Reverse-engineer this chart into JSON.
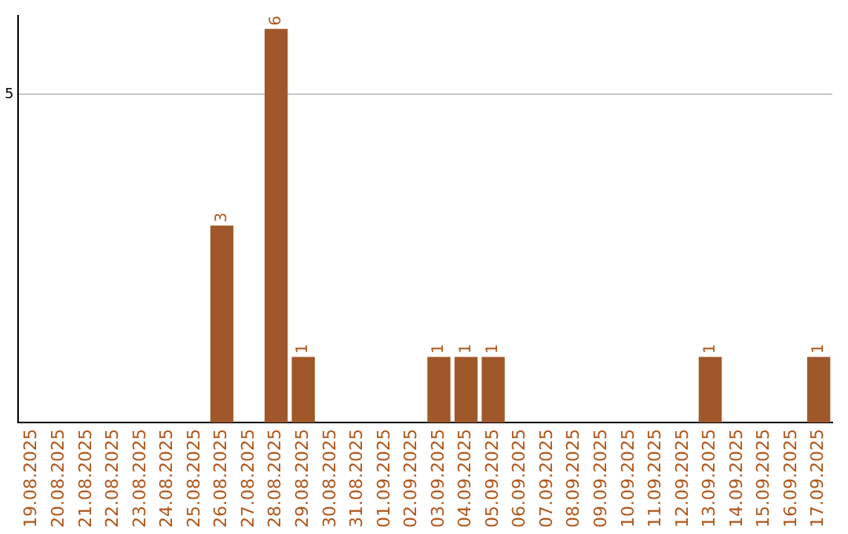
{
  "chart_data": {
    "type": "bar",
    "categories": [
      "19.08.2025",
      "20.08.2025",
      "21.08.2025",
      "22.08.2025",
      "23.08.2025",
      "24.08.2025",
      "25.08.2025",
      "26.08.2025",
      "27.08.2025",
      "28.08.2025",
      "29.08.2025",
      "30.08.2025",
      "31.08.2025",
      "01.09.2025",
      "02.09.2025",
      "03.09.2025",
      "04.09.2025",
      "05.09.2025",
      "06.09.2025",
      "07.09.2025",
      "08.09.2025",
      "09.09.2025",
      "10.09.2025",
      "11.09.2025",
      "12.09.2025",
      "13.09.2025",
      "14.09.2025",
      "15.09.2025",
      "16.09.2025",
      "17.09.2025"
    ],
    "values": [
      0,
      0,
      0,
      0,
      0,
      0,
      0,
      3,
      0,
      6,
      1,
      0,
      0,
      0,
      0,
      1,
      1,
      1,
      0,
      0,
      0,
      0,
      0,
      0,
      0,
      1,
      0,
      0,
      0,
      1
    ],
    "value_labels": [
      null,
      null,
      null,
      null,
      null,
      null,
      null,
      "3",
      null,
      "6",
      "1",
      null,
      null,
      null,
      null,
      "1",
      "1",
      "1",
      null,
      null,
      null,
      null,
      null,
      null,
      null,
      "1",
      null,
      null,
      null,
      "1"
    ],
    "color": "#a0582a",
    "ylim": [
      0,
      6.2
    ],
    "yticks": [
      5
    ],
    "grid": "y",
    "legend": false
  }
}
